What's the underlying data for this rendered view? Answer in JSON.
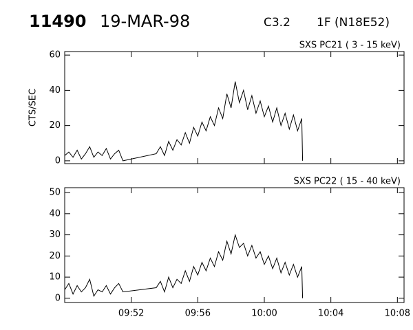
{
  "header": {
    "id": "11490",
    "date": "19-MAR-98",
    "class": "C3.2",
    "optical": "1F (N18E52)"
  },
  "chart_data": [
    {
      "type": "line",
      "ylabel": "CTS/SEC",
      "xlim": [
        588,
        608.4
      ],
      "ylim": [
        -1.6,
        62
      ],
      "yticks": [
        0,
        20,
        40,
        60
      ],
      "x": [
        588,
        588.25,
        588.5,
        588.75,
        589,
        589.25,
        589.5,
        589.75,
        590,
        590.25,
        590.5,
        590.75,
        591,
        591.25,
        591.5,
        593.5,
        593.75,
        594,
        594.25,
        594.5,
        594.75,
        595,
        595.25,
        595.5,
        595.75,
        596,
        596.25,
        596.5,
        596.75,
        597,
        597.25,
        597.5,
        597.75,
        598,
        598.25,
        598.5,
        598.75,
        599,
        599.25,
        599.5,
        599.75,
        600,
        600.25,
        600.5,
        600.75,
        601,
        601.25,
        601.5,
        601.75,
        602,
        602.25,
        602.3
      ],
      "series": [
        {
          "name": "SXS PC21  (  3 - 15 keV)",
          "color": "#000000",
          "values": [
            3,
            5,
            2,
            6,
            1,
            4,
            8,
            2,
            5,
            3,
            7,
            1,
            4,
            6,
            0,
            4,
            8,
            3,
            11,
            6,
            12,
            9,
            16,
            10,
            19,
            14,
            22,
            17,
            25,
            20,
            30,
            24,
            38,
            30,
            45,
            33,
            40,
            29,
            37,
            27,
            34,
            25,
            31,
            22,
            30,
            20,
            27,
            18,
            26,
            17,
            24,
            0
          ]
        }
      ]
    },
    {
      "type": "line",
      "xlim": [
        588,
        608.4
      ],
      "ylim": [
        -2,
        52.3
      ],
      "yticks": [
        0,
        10,
        20,
        30,
        40,
        50
      ],
      "xticks": [
        {
          "value": 592,
          "label": "09:52"
        },
        {
          "value": 596,
          "label": "09:56"
        },
        {
          "value": 600,
          "label": "10:00"
        },
        {
          "value": 604,
          "label": "10:04"
        },
        {
          "value": 608,
          "label": "10:08"
        }
      ],
      "x": [
        588,
        588.25,
        588.5,
        588.75,
        589,
        589.25,
        589.5,
        589.75,
        590,
        590.25,
        590.5,
        590.75,
        591,
        591.25,
        591.5,
        593.5,
        593.75,
        594,
        594.25,
        594.5,
        594.75,
        595,
        595.25,
        595.5,
        595.75,
        596,
        596.25,
        596.5,
        596.75,
        597,
        597.25,
        597.5,
        597.75,
        598,
        598.25,
        598.5,
        598.75,
        599,
        599.25,
        599.5,
        599.75,
        600,
        600.25,
        600.5,
        600.75,
        601,
        601.25,
        601.5,
        601.75,
        602,
        602.25,
        602.3
      ],
      "series": [
        {
          "name": "SXS PC22  ( 15 - 40 keV)",
          "color": "#000000",
          "values": [
            4,
            7,
            2,
            6,
            3,
            5,
            9,
            1,
            4,
            3,
            6,
            2,
            5,
            7,
            3,
            5,
            8,
            3,
            10,
            5,
            9,
            7,
            13,
            8,
            15,
            11,
            17,
            13,
            19,
            15,
            22,
            18,
            27,
            21,
            30,
            24,
            26,
            20,
            25,
            19,
            22,
            16,
            20,
            14,
            19,
            12,
            17,
            11,
            16,
            10,
            15,
            0
          ]
        }
      ]
    }
  ]
}
